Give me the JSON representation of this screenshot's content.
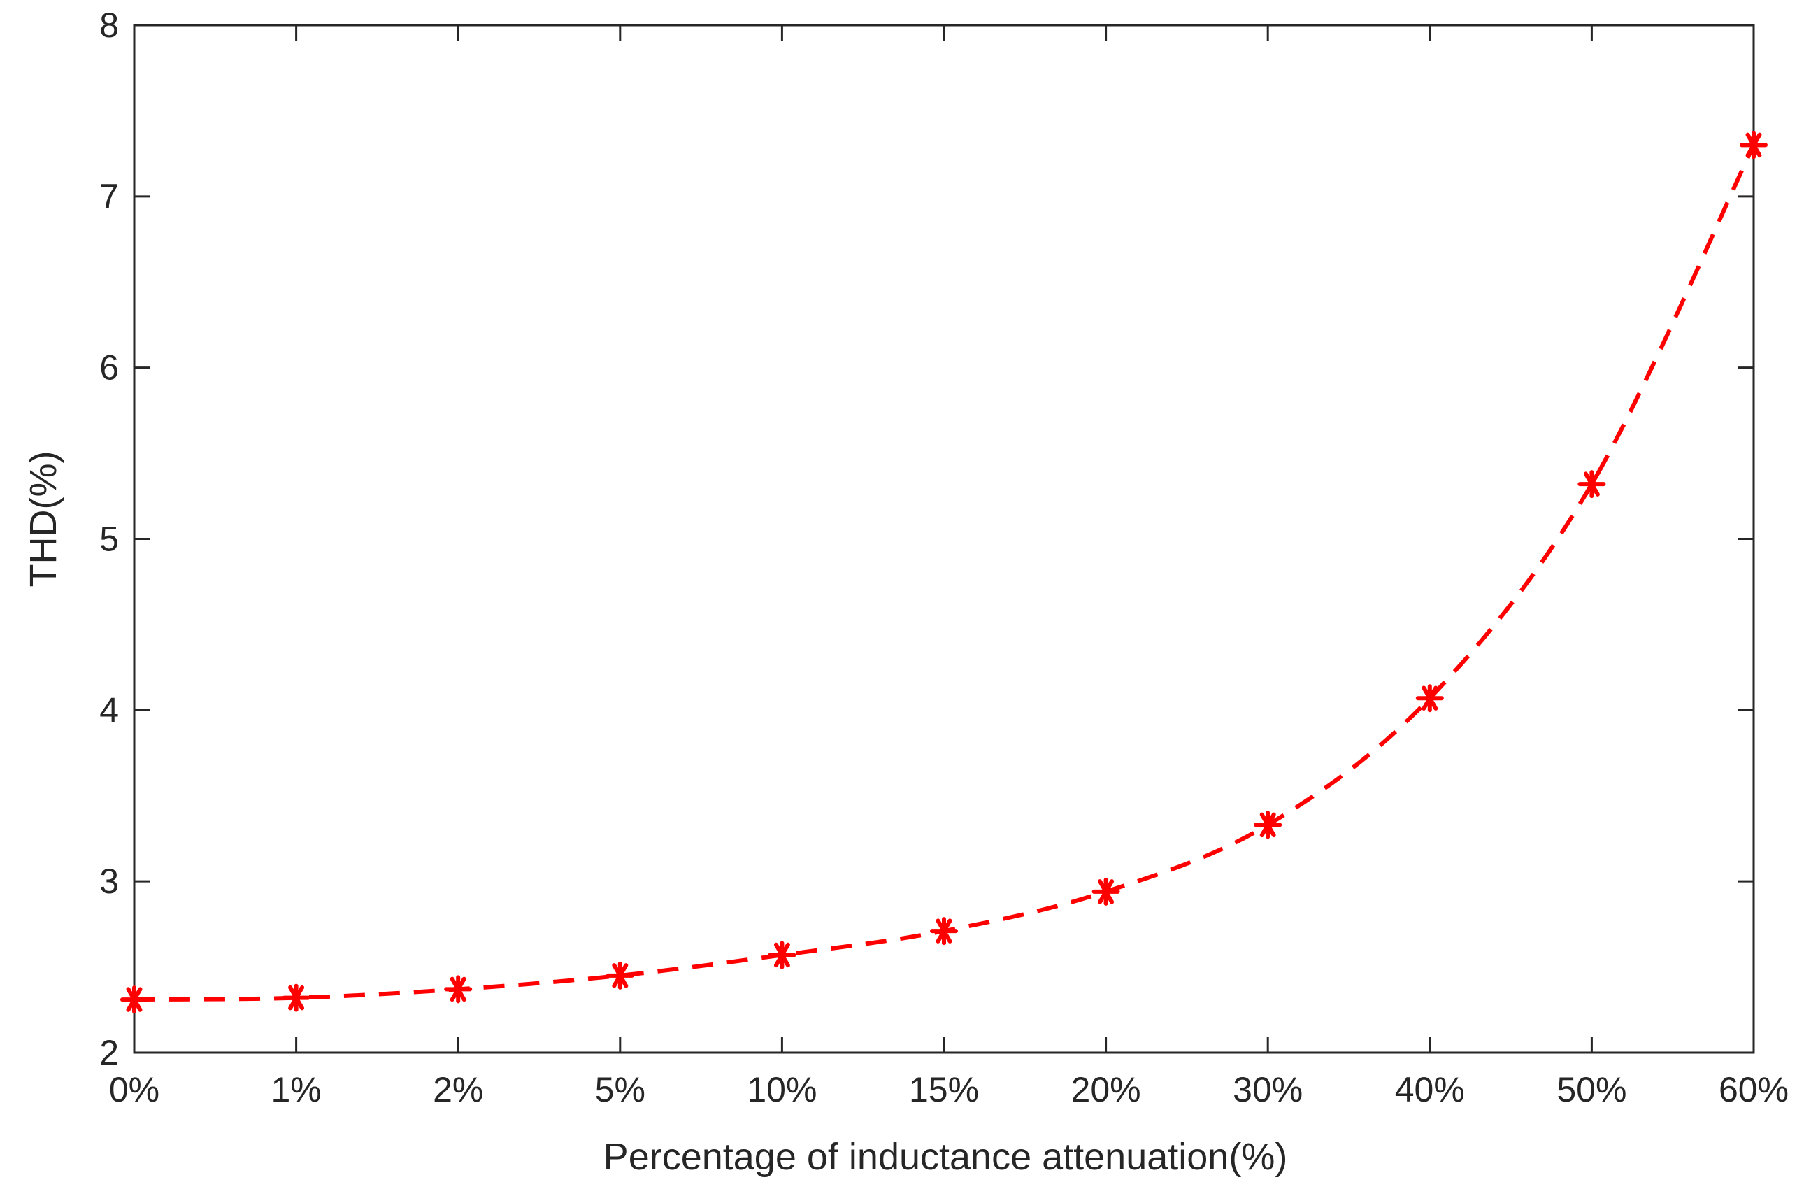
{
  "chart_data": {
    "type": "line",
    "title": "",
    "xlabel": "Percentage of inductance attenuation(%)",
    "ylabel": "THD(%)",
    "categories": [
      "0%",
      "1%",
      "2%",
      "5%",
      "10%",
      "15%",
      "20%",
      "30%",
      "40%",
      "50%",
      "60%"
    ],
    "series": [
      {
        "values": [
          2.31,
          2.32,
          2.37,
          2.45,
          2.57,
          2.71,
          2.94,
          3.33,
          4.07,
          5.32,
          7.3
        ],
        "color": "#ff0000",
        "line_style": "dashed",
        "marker": "asterisk"
      }
    ],
    "ylim": [
      2,
      8
    ],
    "yticks": [
      2,
      3,
      4,
      5,
      6,
      7,
      8
    ],
    "grid": false,
    "box": true
  }
}
